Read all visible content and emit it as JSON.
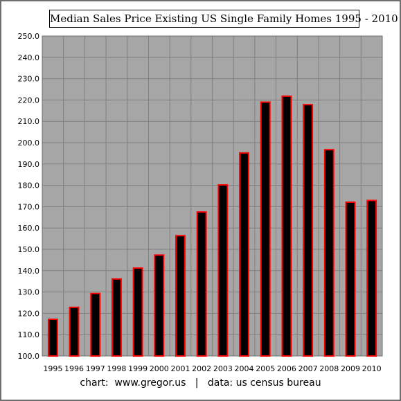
{
  "chart_data": {
    "type": "bar",
    "title": "Median Sales Price Existing US Single Family Homes 1995 - 2010",
    "xlabel": "",
    "ylabel": "",
    "categories": [
      "1995",
      "1996",
      "1997",
      "1998",
      "1999",
      "2000",
      "2001",
      "2002",
      "2003",
      "2004",
      "2005",
      "2006",
      "2007",
      "2008",
      "2009",
      "2010"
    ],
    "values": [
      117.2,
      122.8,
      129.3,
      136.1,
      141.2,
      147.3,
      156.4,
      167.5,
      180.2,
      195.2,
      219.0,
      221.8,
      217.8,
      196.7,
      172.1,
      172.9
    ],
    "ylim": [
      100,
      250
    ],
    "yticks": [
      "100.0",
      "110.0",
      "120.0",
      "130.0",
      "140.0",
      "150.0",
      "160.0",
      "170.0",
      "180.0",
      "190.0",
      "200.0",
      "210.0",
      "220.0",
      "230.0",
      "240.0",
      "250.0"
    ],
    "grid": true,
    "legend": "none",
    "colors": {
      "plot_background": "#a6a6a6",
      "grid": "#7f7f7f",
      "bar_fill": "#000000",
      "bar_edge": "#ff0000"
    }
  },
  "footer": {
    "chart_credit": "chart:  www.gregor.us",
    "separator": "|",
    "data_credit": "data: us census bureau"
  }
}
